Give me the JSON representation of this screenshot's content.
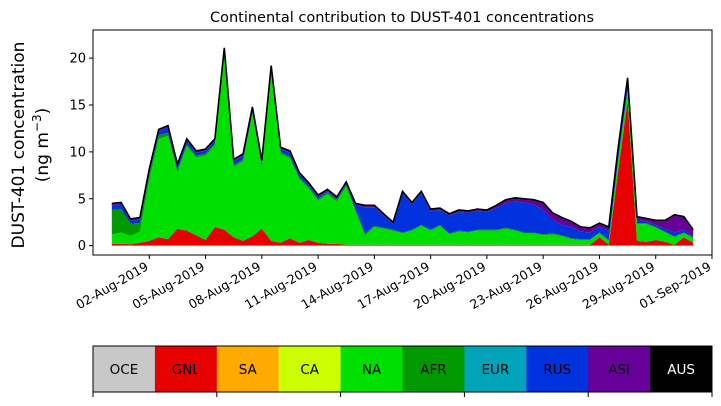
{
  "chart_data": {
    "type": "area",
    "stacked": true,
    "title": "Continental contribution to DUST-401 concentrations",
    "ylabel_line1": "DUST-401 concentration",
    "ylabel_line2_prefix": "(ng m",
    "ylabel_line2_sup": "−3",
    "ylabel_line2_suffix": ")",
    "xlabel": "",
    "x_start": "2019-07-31",
    "x_end": "2019-08-31",
    "xlim": [
      "2019-07-30",
      "2019-09-01"
    ],
    "ylim": [
      -1,
      23
    ],
    "grid": false,
    "legend": "colorbar-below",
    "x_ticks": [
      {
        "date": "2019-08-02",
        "label": "02-Aug-2019"
      },
      {
        "date": "2019-08-05",
        "label": "05-Aug-2019"
      },
      {
        "date": "2019-08-08",
        "label": "08-Aug-2019"
      },
      {
        "date": "2019-08-11",
        "label": "11-Aug-2019"
      },
      {
        "date": "2019-08-14",
        "label": "14-Aug-2019"
      },
      {
        "date": "2019-08-17",
        "label": "17-Aug-2019"
      },
      {
        "date": "2019-08-20",
        "label": "20-Aug-2019"
      },
      {
        "date": "2019-08-23",
        "label": "23-Aug-2019"
      },
      {
        "date": "2019-08-26",
        "label": "26-Aug-2019"
      },
      {
        "date": "2019-08-29",
        "label": "29-Aug-2019"
      },
      {
        "date": "2019-09-01",
        "label": "01-Sep-2019"
      }
    ],
    "y_ticks": [
      0,
      5,
      10,
      15,
      20
    ],
    "series": [
      {
        "name": "OCE",
        "color": "#c8c8c8",
        "values": [
          0,
          0,
          0,
          0,
          0,
          0,
          0,
          0,
          0,
          0,
          0,
          0,
          0,
          0,
          0,
          0,
          0,
          0,
          0,
          0,
          0,
          0,
          0,
          0,
          0,
          0,
          0,
          0,
          0,
          0,
          0,
          0,
          0,
          0,
          0,
          0,
          0,
          0,
          0,
          0,
          0,
          0,
          0,
          0,
          0,
          0,
          0,
          0,
          0,
          0,
          0,
          0,
          0,
          0,
          0,
          0,
          0,
          0,
          0,
          0,
          0,
          0,
          0
        ]
      },
      {
        "name": "GNL",
        "color": "#e60000",
        "values": [
          0.2,
          0.2,
          0.15,
          0.3,
          0.5,
          0.9,
          0.7,
          1.8,
          1.6,
          1.1,
          0.6,
          2.0,
          1.7,
          0.9,
          0.5,
          1.0,
          1.8,
          0.5,
          0.3,
          0.8,
          0.3,
          0.6,
          0.3,
          0.2,
          0.2,
          0.1,
          0.1,
          0.1,
          0.1,
          0.1,
          0.1,
          0.1,
          0.1,
          0.1,
          0.1,
          0.1,
          0.1,
          0.1,
          0.1,
          0.1,
          0.1,
          0.1,
          0.1,
          0.1,
          0.1,
          0.1,
          0.1,
          0.1,
          0.1,
          0.1,
          0.1,
          0.1,
          0.9,
          0.1,
          8.0,
          15.5,
          0.5,
          0.4,
          0.6,
          0.4,
          0.1,
          0.9,
          0.3
        ]
      },
      {
        "name": "SA",
        "color": "#ffaa00",
        "values": [
          0,
          0,
          0,
          0,
          0,
          0,
          0,
          0,
          0,
          0,
          0,
          0,
          0,
          0,
          0,
          0,
          0,
          0,
          0,
          0,
          0,
          0,
          0,
          0,
          0,
          0,
          0,
          0,
          0,
          0,
          0,
          0,
          0,
          0,
          0,
          0,
          0,
          0,
          0,
          0,
          0,
          0,
          0,
          0,
          0,
          0,
          0,
          0,
          0,
          0,
          0,
          0,
          0,
          0,
          0,
          0,
          0,
          0,
          0,
          0,
          0,
          0,
          0
        ]
      },
      {
        "name": "CA",
        "color": "#ccff00",
        "values": [
          0,
          0,
          0,
          0,
          0,
          0,
          0,
          0,
          0,
          0,
          0,
          0,
          0,
          0,
          0,
          0,
          0,
          0,
          0,
          0,
          0,
          0,
          0,
          0,
          0,
          0,
          0,
          0,
          0,
          0,
          0,
          0,
          0,
          0,
          0,
          0,
          0,
          0,
          0,
          0,
          0,
          0,
          0,
          0,
          0,
          0,
          0,
          0,
          0,
          0,
          0,
          0,
          0,
          0,
          0,
          0,
          0,
          0,
          0,
          0,
          0,
          0,
          0
        ]
      },
      {
        "name": "NA",
        "color": "#00e000",
        "values": [
          1.0,
          1.2,
          0.9,
          1.2,
          6.5,
          10.5,
          11.0,
          6.0,
          9.0,
          8.3,
          9.0,
          8.7,
          18.5,
          7.5,
          8.5,
          13.0,
          6.5,
          17.8,
          9.5,
          8.5,
          6.8,
          5.5,
          4.5,
          5.3,
          4.5,
          6.2,
          3.5,
          1.0,
          1.9,
          1.7,
          1.5,
          1.2,
          1.5,
          2.0,
          1.5,
          2.0,
          1.1,
          1.4,
          1.3,
          1.5,
          1.5,
          1.5,
          1.7,
          1.5,
          1.2,
          1.2,
          1.0,
          1.1,
          0.9,
          0.6,
          0.5,
          0.5,
          0.4,
          0.4,
          1.1,
          1.0,
          1.8,
          1.9,
          1.3,
          1.0,
          0.8,
          0.4,
          0.5
        ]
      },
      {
        "name": "AFR",
        "color": "#009900",
        "values": [
          2.6,
          2.5,
          1.3,
          0.9,
          0.6,
          0.4,
          0.3,
          0.3,
          0.2,
          0.2,
          0.2,
          0.2,
          0.2,
          0.2,
          0.2,
          0.2,
          0.2,
          0.2,
          0.2,
          0.2,
          0.2,
          0.2,
          0.2,
          0.2,
          0.2,
          0.2,
          0.2,
          0.2,
          0.1,
          0.1,
          0.1,
          0.1,
          0.1,
          0.1,
          0.1,
          0.1,
          0.1,
          0.1,
          0.1,
          0.1,
          0.1,
          0.1,
          0.1,
          0.1,
          0.1,
          0.1,
          0.1,
          0.1,
          0.1,
          0.1,
          0.1,
          0.1,
          0.1,
          0.1,
          0.1,
          0.1,
          0.1,
          0.1,
          0.1,
          0.1,
          0.1,
          0.1,
          0.1
        ]
      },
      {
        "name": "EUR",
        "color": "#00a3b8",
        "values": [
          0,
          0,
          0,
          0,
          0,
          0,
          0,
          0,
          0,
          0,
          0,
          0,
          0,
          0,
          0,
          0,
          0,
          0,
          0,
          0,
          0,
          0,
          0,
          0,
          0,
          0,
          0,
          0,
          0,
          0,
          0,
          0,
          0,
          0,
          0,
          0,
          0,
          0,
          0,
          0,
          0,
          0,
          0,
          0,
          0,
          0,
          0,
          0,
          0,
          0,
          0,
          0,
          0,
          0,
          0,
          0,
          0,
          0,
          0,
          0,
          0,
          0,
          0
        ]
      },
      {
        "name": "RUS",
        "color": "#0033dd",
        "values": [
          0.5,
          0.5,
          0.3,
          0.4,
          0.4,
          0.4,
          0.6,
          0.4,
          0.4,
          0.3,
          0.3,
          0.3,
          0.5,
          0.4,
          0.4,
          0.4,
          0.4,
          0.5,
          0.3,
          0.4,
          0.3,
          0.2,
          0.2,
          0.1,
          0.1,
          0.1,
          0.5,
          2.8,
          2.0,
          1.3,
          0.6,
          4.2,
          2.7,
          3.4,
          2.0,
          1.6,
          1.9,
          2.0,
          2.0,
          2.0,
          1.9,
          2.3,
          2.6,
          3.0,
          3.2,
          3.0,
          2.6,
          1.5,
          1.1,
          1.2,
          0.8,
          0.7,
          0.6,
          1.0,
          0.8,
          0.8,
          0.3,
          0.2,
          0.2,
          0.3,
          0.4,
          0.3,
          0.1
        ]
      },
      {
        "name": "ASI",
        "color": "#660099",
        "values": [
          0.1,
          0.1,
          0.1,
          0.1,
          0.1,
          0.1,
          0.1,
          0.1,
          0.1,
          0.1,
          0.1,
          0.1,
          0.1,
          0.1,
          0.1,
          0.1,
          0.1,
          0.1,
          0.1,
          0.1,
          0.1,
          0.1,
          0.1,
          0.1,
          0.1,
          0.1,
          0.1,
          0.1,
          0.1,
          0.1,
          0.1,
          0.1,
          0.1,
          0.1,
          0.1,
          0.1,
          0.1,
          0.1,
          0.1,
          0.1,
          0.1,
          0.2,
          0.3,
          0.3,
          0.3,
          0.4,
          0.7,
          0.6,
          0.7,
          0.5,
          0.4,
          0.4,
          0.3,
          0.3,
          0.4,
          0.4,
          0.3,
          0.2,
          0.4,
          0.8,
          1.8,
          1.3,
          0.6
        ]
      },
      {
        "name": "AUS",
        "color": "#000000",
        "values": [
          0.1,
          0.1,
          0.1,
          0.1,
          0.1,
          0.1,
          0.1,
          0.1,
          0.1,
          0.1,
          0.1,
          0.1,
          0.1,
          0.1,
          0.1,
          0.1,
          0.1,
          0.1,
          0.1,
          0.1,
          0.1,
          0.1,
          0.1,
          0.1,
          0.1,
          0.1,
          0.1,
          0.1,
          0.1,
          0.1,
          0.1,
          0.1,
          0.1,
          0.1,
          0.1,
          0.1,
          0.1,
          0.1,
          0.1,
          0.1,
          0.1,
          0.1,
          0.1,
          0.1,
          0.1,
          0.1,
          0.1,
          0.1,
          0.1,
          0.1,
          0.1,
          0.1,
          0.1,
          0.1,
          0.1,
          0.1,
          0.1,
          0.1,
          0.1,
          0.1,
          0.1,
          0.1,
          0.1
        ]
      }
    ],
    "colorbar": {
      "labels": [
        "OCE",
        "GNL",
        "SA",
        "CA",
        "NA",
        "AFR",
        "EUR",
        "RUS",
        "ASI",
        "AUS"
      ],
      "colors": [
        "#c8c8c8",
        "#e60000",
        "#ffaa00",
        "#ccff00",
        "#00e000",
        "#009900",
        "#00a3b8",
        "#0033dd",
        "#660099",
        "#000000"
      ],
      "text_colors": [
        "#000000",
        "#000000",
        "#000000",
        "#000000",
        "#000000",
        "#000000",
        "#000000",
        "#000000",
        "#000000",
        "#ffffff"
      ]
    }
  }
}
